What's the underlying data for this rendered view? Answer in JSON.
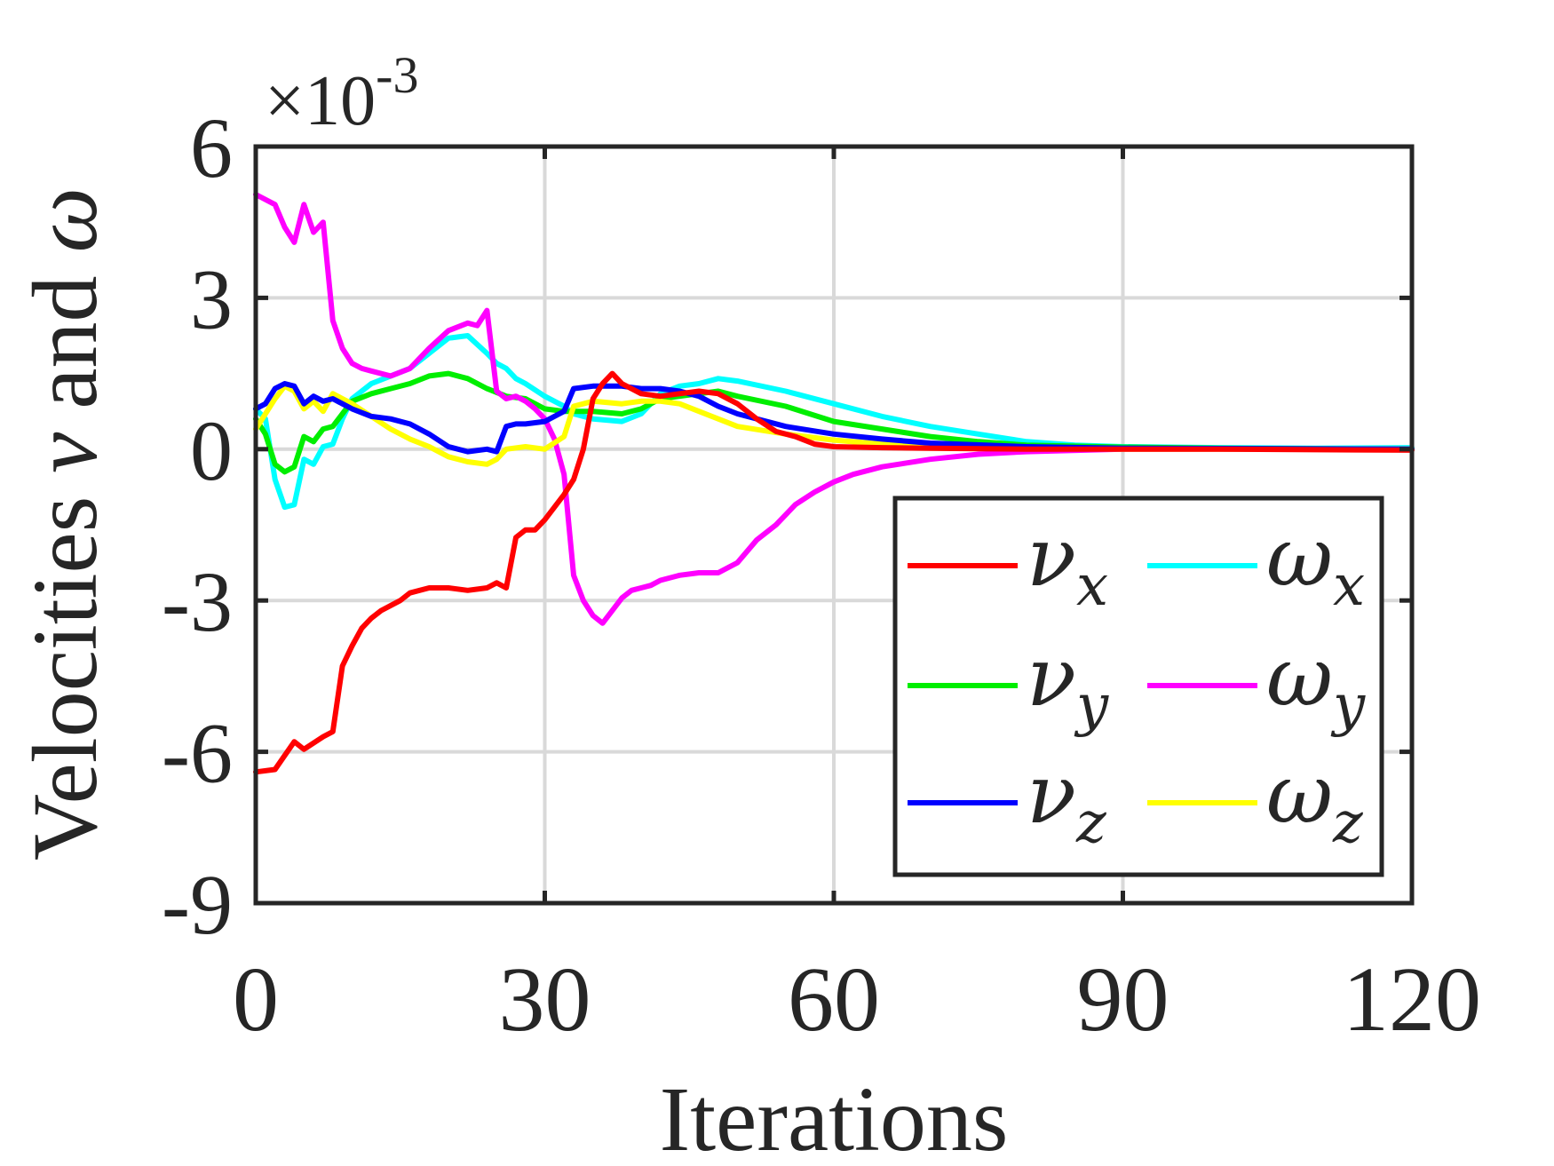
{
  "chart_data": {
    "type": "line",
    "xlabel": "Iterations",
    "ylabel_prefix": "Velocities ",
    "ylabel_nu": "ν",
    "ylabel_and": " and ",
    "ylabel_omega": "ω",
    "exponent_prefix": "×10",
    "exponent_power": "-3",
    "xlim": [
      0,
      120
    ],
    "ylim": [
      -9,
      6
    ],
    "xticks": [
      0,
      30,
      60,
      90,
      120
    ],
    "xtick_labels": [
      "0",
      "30",
      "60",
      "90",
      "120"
    ],
    "yticks": [
      -9,
      -6,
      -3,
      0,
      3,
      6
    ],
    "ytick_labels": [
      "-9",
      "-6",
      "-3",
      "0",
      "3",
      "6"
    ],
    "grid": true,
    "legend_position": "bottom-right",
    "legend_columns": 2,
    "series": [
      {
        "name": "ν_x",
        "symbol": "ν",
        "sub": "x",
        "color": "#ff0000",
        "points": [
          [
            0,
            -6.4
          ],
          [
            2,
            -6.35
          ],
          [
            4,
            -5.8
          ],
          [
            5,
            -5.95
          ],
          [
            7,
            -5.7
          ],
          [
            8,
            -5.6
          ],
          [
            9,
            -4.3
          ],
          [
            10,
            -3.9
          ],
          [
            11,
            -3.55
          ],
          [
            12,
            -3.35
          ],
          [
            13,
            -3.2
          ],
          [
            15,
            -3.0
          ],
          [
            16,
            -2.85
          ],
          [
            18,
            -2.75
          ],
          [
            20,
            -2.75
          ],
          [
            22,
            -2.8
          ],
          [
            24,
            -2.75
          ],
          [
            25,
            -2.65
          ],
          [
            26,
            -2.75
          ],
          [
            27,
            -1.75
          ],
          [
            28,
            -1.6
          ],
          [
            29,
            -1.6
          ],
          [
            30,
            -1.4
          ],
          [
            32,
            -0.9
          ],
          [
            33,
            -0.6
          ],
          [
            34,
            0.0
          ],
          [
            35,
            1.0
          ],
          [
            36,
            1.3
          ],
          [
            37,
            1.5
          ],
          [
            38,
            1.3
          ],
          [
            40,
            1.1
          ],
          [
            42,
            1.05
          ],
          [
            44,
            1.1
          ],
          [
            46,
            1.15
          ],
          [
            48,
            1.1
          ],
          [
            50,
            0.9
          ],
          [
            52,
            0.6
          ],
          [
            54,
            0.35
          ],
          [
            56,
            0.25
          ],
          [
            58,
            0.1
          ],
          [
            60,
            0.05
          ],
          [
            65,
            0.03
          ],
          [
            70,
            0.02
          ],
          [
            80,
            0.0
          ],
          [
            100,
            0.0
          ],
          [
            120,
            -0.02
          ]
        ]
      },
      {
        "name": "ν_y",
        "symbol": "ν",
        "sub": "y",
        "color": "#00ee00",
        "points": [
          [
            0,
            0.6
          ],
          [
            1,
            0.3
          ],
          [
            2,
            -0.3
          ],
          [
            3,
            -0.45
          ],
          [
            4,
            -0.35
          ],
          [
            5,
            0.25
          ],
          [
            6,
            0.15
          ],
          [
            7,
            0.4
          ],
          [
            8,
            0.45
          ],
          [
            9,
            0.7
          ],
          [
            10,
            0.95
          ],
          [
            12,
            1.1
          ],
          [
            14,
            1.2
          ],
          [
            16,
            1.3
          ],
          [
            18,
            1.45
          ],
          [
            20,
            1.5
          ],
          [
            22,
            1.4
          ],
          [
            24,
            1.2
          ],
          [
            26,
            1.05
          ],
          [
            28,
            1.0
          ],
          [
            30,
            0.8
          ],
          [
            32,
            0.75
          ],
          [
            35,
            0.75
          ],
          [
            38,
            0.7
          ],
          [
            40,
            0.8
          ],
          [
            42,
            1.0
          ],
          [
            44,
            1.05
          ],
          [
            46,
            1.1
          ],
          [
            48,
            1.15
          ],
          [
            50,
            1.05
          ],
          [
            55,
            0.85
          ],
          [
            60,
            0.55
          ],
          [
            65,
            0.4
          ],
          [
            70,
            0.25
          ],
          [
            75,
            0.15
          ],
          [
            80,
            0.08
          ],
          [
            90,
            0.04
          ],
          [
            100,
            0.02
          ],
          [
            120,
            0.0
          ]
        ]
      },
      {
        "name": "ν_z",
        "symbol": "ν",
        "sub": "z",
        "color": "#0000ff",
        "points": [
          [
            0,
            0.8
          ],
          [
            1,
            0.9
          ],
          [
            2,
            1.2
          ],
          [
            3,
            1.3
          ],
          [
            4,
            1.25
          ],
          [
            5,
            0.9
          ],
          [
            6,
            1.05
          ],
          [
            7,
            0.95
          ],
          [
            8,
            1.0
          ],
          [
            9,
            0.9
          ],
          [
            10,
            0.8
          ],
          [
            12,
            0.65
          ],
          [
            14,
            0.6
          ],
          [
            16,
            0.5
          ],
          [
            18,
            0.3
          ],
          [
            20,
            0.05
          ],
          [
            22,
            -0.05
          ],
          [
            24,
            0.0
          ],
          [
            25,
            -0.05
          ],
          [
            26,
            0.45
          ],
          [
            27,
            0.5
          ],
          [
            28,
            0.5
          ],
          [
            30,
            0.55
          ],
          [
            32,
            0.75
          ],
          [
            33,
            1.2
          ],
          [
            35,
            1.25
          ],
          [
            38,
            1.25
          ],
          [
            40,
            1.2
          ],
          [
            42,
            1.2
          ],
          [
            44,
            1.15
          ],
          [
            46,
            1.05
          ],
          [
            48,
            0.85
          ],
          [
            50,
            0.7
          ],
          [
            55,
            0.45
          ],
          [
            60,
            0.3
          ],
          [
            65,
            0.2
          ],
          [
            70,
            0.12
          ],
          [
            80,
            0.05
          ],
          [
            90,
            0.02
          ],
          [
            120,
            0.0
          ]
        ]
      },
      {
        "name": "ω_x",
        "symbol": "ω",
        "sub": "x",
        "color": "#00ffff",
        "points": [
          [
            0,
            0.8
          ],
          [
            1,
            0.6
          ],
          [
            2,
            -0.6
          ],
          [
            3,
            -1.15
          ],
          [
            4,
            -1.1
          ],
          [
            5,
            -0.2
          ],
          [
            6,
            -0.3
          ],
          [
            7,
            0.05
          ],
          [
            8,
            0.1
          ],
          [
            9,
            0.6
          ],
          [
            10,
            1.0
          ],
          [
            12,
            1.3
          ],
          [
            14,
            1.45
          ],
          [
            16,
            1.6
          ],
          [
            18,
            1.9
          ],
          [
            20,
            2.2
          ],
          [
            22,
            2.25
          ],
          [
            24,
            1.9
          ],
          [
            25,
            1.7
          ],
          [
            26,
            1.6
          ],
          [
            27,
            1.4
          ],
          [
            28,
            1.3
          ],
          [
            30,
            1.05
          ],
          [
            32,
            0.85
          ],
          [
            33,
            0.7
          ],
          [
            35,
            0.6
          ],
          [
            38,
            0.55
          ],
          [
            40,
            0.7
          ],
          [
            42,
            1.1
          ],
          [
            44,
            1.25
          ],
          [
            46,
            1.3
          ],
          [
            48,
            1.4
          ],
          [
            50,
            1.35
          ],
          [
            55,
            1.15
          ],
          [
            60,
            0.9
          ],
          [
            65,
            0.65
          ],
          [
            70,
            0.45
          ],
          [
            75,
            0.3
          ],
          [
            80,
            0.15
          ],
          [
            85,
            0.08
          ],
          [
            90,
            0.05
          ],
          [
            100,
            0.03
          ],
          [
            110,
            0.02
          ],
          [
            120,
            0.03
          ]
        ]
      },
      {
        "name": "ω_y",
        "symbol": "ω",
        "sub": "y",
        "color": "#ff00ff",
        "points": [
          [
            0,
            5.05
          ],
          [
            2,
            4.85
          ],
          [
            3,
            4.4
          ],
          [
            4,
            4.1
          ],
          [
            5,
            4.85
          ],
          [
            6,
            4.3
          ],
          [
            7,
            4.5
          ],
          [
            8,
            2.55
          ],
          [
            9,
            2.0
          ],
          [
            10,
            1.7
          ],
          [
            11,
            1.6
          ],
          [
            12,
            1.55
          ],
          [
            14,
            1.45
          ],
          [
            16,
            1.6
          ],
          [
            18,
            2.0
          ],
          [
            20,
            2.35
          ],
          [
            22,
            2.5
          ],
          [
            23,
            2.45
          ],
          [
            24,
            2.75
          ],
          [
            25,
            1.15
          ],
          [
            26,
            1.0
          ],
          [
            27,
            1.05
          ],
          [
            28,
            0.95
          ],
          [
            29,
            0.8
          ],
          [
            30,
            0.6
          ],
          [
            31,
            0.2
          ],
          [
            32,
            -0.5
          ],
          [
            33,
            -2.5
          ],
          [
            34,
            -3.0
          ],
          [
            35,
            -3.3
          ],
          [
            36,
            -3.45
          ],
          [
            37,
            -3.2
          ],
          [
            38,
            -2.95
          ],
          [
            39,
            -2.8
          ],
          [
            40,
            -2.75
          ],
          [
            41,
            -2.7
          ],
          [
            42,
            -2.6
          ],
          [
            44,
            -2.5
          ],
          [
            46,
            -2.45
          ],
          [
            48,
            -2.45
          ],
          [
            50,
            -2.25
          ],
          [
            52,
            -1.8
          ],
          [
            54,
            -1.5
          ],
          [
            56,
            -1.1
          ],
          [
            58,
            -0.85
          ],
          [
            60,
            -0.65
          ],
          [
            62,
            -0.5
          ],
          [
            65,
            -0.35
          ],
          [
            70,
            -0.2
          ],
          [
            75,
            -0.1
          ],
          [
            80,
            -0.05
          ],
          [
            90,
            0.0
          ],
          [
            100,
            0.0
          ],
          [
            120,
            0.0
          ]
        ]
      },
      {
        "name": "ω_z",
        "symbol": "ω",
        "sub": "z",
        "color": "#ffff00",
        "points": [
          [
            0,
            0.4
          ],
          [
            1,
            0.7
          ],
          [
            2,
            1.0
          ],
          [
            3,
            1.25
          ],
          [
            4,
            1.15
          ],
          [
            5,
            0.8
          ],
          [
            6,
            0.95
          ],
          [
            7,
            0.75
          ],
          [
            8,
            1.1
          ],
          [
            9,
            1.0
          ],
          [
            10,
            0.9
          ],
          [
            12,
            0.65
          ],
          [
            14,
            0.4
          ],
          [
            16,
            0.2
          ],
          [
            18,
            0.05
          ],
          [
            20,
            -0.15
          ],
          [
            22,
            -0.25
          ],
          [
            24,
            -0.3
          ],
          [
            25,
            -0.2
          ],
          [
            26,
            0.0
          ],
          [
            28,
            0.05
          ],
          [
            30,
            0.0
          ],
          [
            32,
            0.25
          ],
          [
            33,
            0.85
          ],
          [
            35,
            0.95
          ],
          [
            38,
            0.9
          ],
          [
            40,
            0.95
          ],
          [
            42,
            0.95
          ],
          [
            44,
            0.9
          ],
          [
            46,
            0.75
          ],
          [
            48,
            0.6
          ],
          [
            50,
            0.45
          ],
          [
            55,
            0.3
          ],
          [
            60,
            0.18
          ],
          [
            65,
            0.1
          ],
          [
            70,
            0.05
          ],
          [
            80,
            0.02
          ],
          [
            90,
            0.0
          ],
          [
            120,
            0.0
          ]
        ]
      }
    ]
  }
}
